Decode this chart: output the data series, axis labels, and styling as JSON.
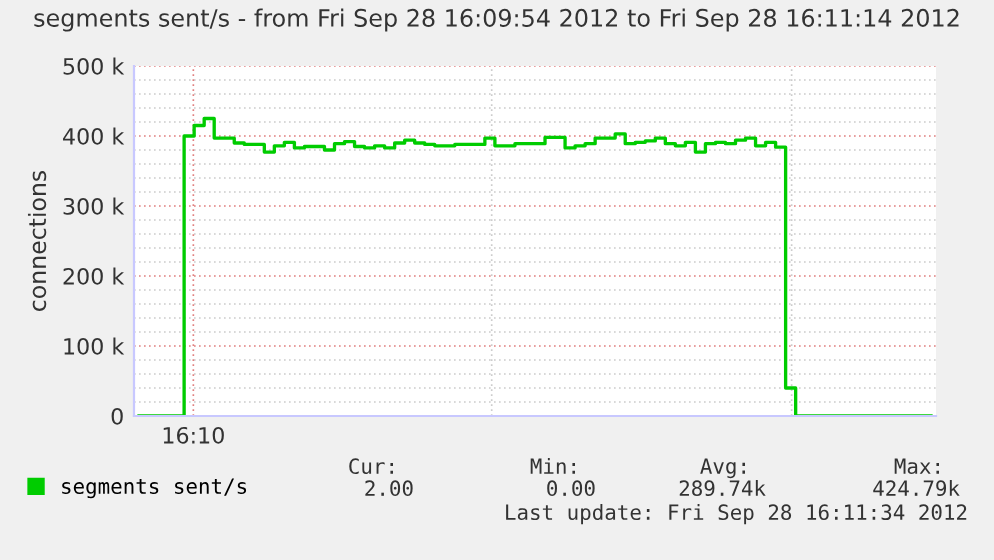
{
  "chart_data": {
    "type": "step",
    "title": "segments sent/s - from Fri Sep 28 16:09:54 2012 to Fri Sep 28 16:11:14 2012",
    "ylabel": "connections",
    "categories": [
      null,
      null,
      null,
      null,
      null,
      null,
      null,
      null,
      null,
      null,
      null,
      null,
      null,
      null,
      null,
      null,
      null,
      null,
      null,
      null,
      null,
      null,
      null,
      null,
      null,
      null,
      null,
      null,
      null,
      null,
      null,
      null,
      null,
      null,
      null,
      null,
      null,
      null,
      null,
      null,
      null,
      null,
      null,
      null,
      null,
      null,
      null,
      null,
      null,
      null,
      null,
      null,
      null,
      null,
      null,
      null,
      null,
      null,
      null,
      null,
      null,
      null,
      null,
      null,
      null,
      null,
      null,
      null,
      null,
      null,
      null,
      null,
      null,
      null,
      null,
      null,
      null,
      null,
      null,
      null
    ],
    "series": [
      {
        "name": "segments sent/s",
        "color": "#00cc00",
        "values": [
          0,
          0,
          0,
          0,
          0,
          400000,
          415000,
          425000,
          397000,
          397000,
          390000,
          388000,
          388000,
          377000,
          386000,
          391000,
          383000,
          385000,
          385000,
          380000,
          389000,
          392000,
          385000,
          383000,
          386000,
          383000,
          390000,
          394000,
          390000,
          388000,
          386000,
          386000,
          388000,
          388000,
          388000,
          397000,
          386000,
          386000,
          389000,
          389000,
          389000,
          398000,
          398000,
          383000,
          386000,
          389000,
          397000,
          397000,
          403000,
          389000,
          391000,
          393000,
          397000,
          389000,
          386000,
          391000,
          377000,
          389000,
          391000,
          389000,
          394000,
          397000,
          386000,
          391000,
          384000,
          40000,
          0,
          0,
          0,
          0,
          0,
          0,
          0,
          0,
          0,
          0,
          0,
          0,
          0,
          0
        ]
      }
    ],
    "ylim": [
      0,
      500000
    ],
    "yticks": [
      {
        "value": 0,
        "label": "0"
      },
      {
        "value": 20000,
        "label": null
      },
      {
        "value": 40000,
        "label": null
      },
      {
        "value": 60000,
        "label": null
      },
      {
        "value": 80000,
        "label": null
      },
      {
        "value": 100000,
        "label": "100 k"
      },
      {
        "value": 120000,
        "label": null
      },
      {
        "value": 140000,
        "label": null
      },
      {
        "value": 160000,
        "label": null
      },
      {
        "value": 180000,
        "label": null
      },
      {
        "value": 200000,
        "label": "200 k"
      },
      {
        "value": 220000,
        "label": null
      },
      {
        "value": 240000,
        "label": null
      },
      {
        "value": 260000,
        "label": null
      },
      {
        "value": 280000,
        "label": null
      },
      {
        "value": 300000,
        "label": "300 k"
      },
      {
        "value": 320000,
        "label": null
      },
      {
        "value": 340000,
        "label": null
      },
      {
        "value": 360000,
        "label": null
      },
      {
        "value": 380000,
        "label": null
      },
      {
        "value": 400000,
        "label": "400 k"
      },
      {
        "value": 420000,
        "label": null
      },
      {
        "value": 440000,
        "label": null
      },
      {
        "value": 460000,
        "label": null
      },
      {
        "value": 480000,
        "label": null
      },
      {
        "value": 500000,
        "label": "500 k"
      }
    ],
    "grid": true,
    "legend": "bottom",
    "annotations": [
      "16:10",
      "Cur:",
      "Min:",
      "Avg:",
      "Max:",
      "2.00",
      "0.00",
      "289.74k",
      "424.79k",
      "Last update: Fri Sep 28 16:11:34 2012"
    ]
  }
}
